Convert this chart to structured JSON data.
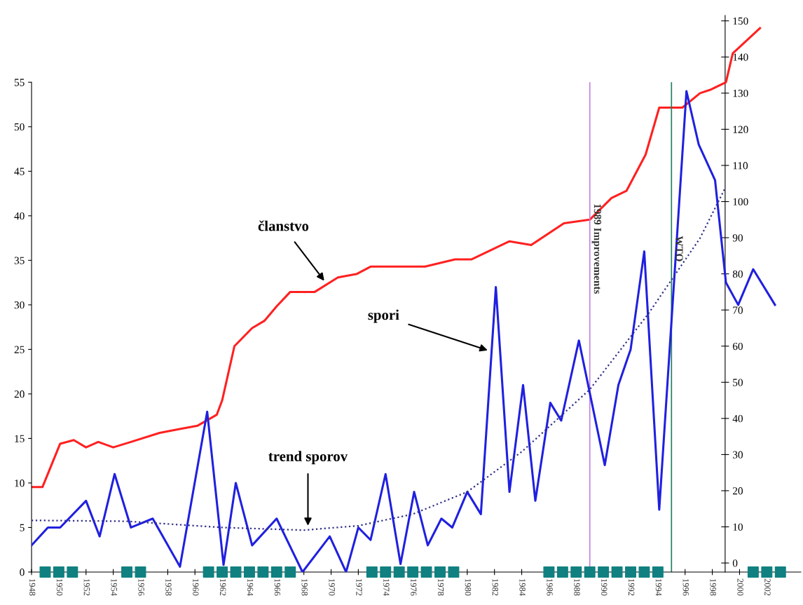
{
  "chart_data": {
    "type": "line",
    "annotations": [
      {
        "text": "članstvo",
        "x": 1969.5,
        "y": 32.7
      },
      {
        "text": "spori",
        "x": 1981.5,
        "y": 24.9
      },
      {
        "text": "trend sporov",
        "x": 1968.3,
        "y": 5.2
      }
    ],
    "series": [
      {
        "color": "#ff2020",
        "axis": "y2",
        "x": [
          1948,
          1948.8,
          1950.1,
          1951.1,
          1952,
          1952.9,
          1954,
          1955.3,
          1957.4,
          1958.8,
          1960.2,
          1961.6,
          1962,
          1962.9,
          1964.2,
          1965.1,
          1966,
          1967,
          1967.7,
          1968.8,
          1970.5,
          1971.9,
          1972.9,
          1975.2,
          1976.9,
          1979.1,
          1980.3,
          1983.1,
          1984.7,
          1987.1,
          1989,
          1990.6,
          1991.7,
          1993.1,
          1994.1,
          1995.8,
          1997.1,
          1997.9,
          1999,
          1999.5,
          2001.5
        ],
        "values": [
          21,
          21,
          33,
          34,
          32,
          33.5,
          32,
          33.5,
          36,
          37,
          38,
          41,
          45,
          60,
          65,
          67,
          71,
          75,
          75,
          75,
          79,
          80,
          82,
          82,
          82,
          84,
          84,
          89,
          88,
          94,
          95,
          101,
          103,
          113,
          126,
          126,
          130,
          131,
          133,
          141,
          148
        ]
      },
      {
        "color": "#2020e0",
        "x": [
          1948,
          1949.2,
          1950.1,
          1952,
          1953,
          1954.1,
          1955.3,
          1956.9,
          1958.9,
          1960.9,
          1962.1,
          1963,
          1964.2,
          1966,
          1967.9,
          1969.9,
          1971.1,
          1972,
          1972.9,
          1974,
          1975.1,
          1976.1,
          1977.1,
          1978.1,
          1978.9,
          1980,
          1981,
          1982.1,
          1983.1,
          1984.1,
          1985,
          1986.1,
          1986.9,
          1988.2,
          1990.1,
          1991.1,
          1992,
          1993,
          1994.1,
          1996.1,
          1997,
          1998.2,
          1999,
          1999.9,
          2001,
          2002.6
        ],
        "values": [
          3,
          5,
          5,
          8,
          4,
          11,
          5,
          6,
          0.6,
          18,
          0.8,
          10,
          3,
          6,
          0,
          4,
          0,
          5,
          3.6,
          11,
          0.9,
          9,
          3,
          6,
          5,
          9,
          6.5,
          32,
          9,
          21,
          8,
          19,
          17,
          26,
          12,
          21,
          25,
          36,
          7,
          54,
          48,
          44,
          32.5,
          30,
          34,
          30
        ]
      },
      {
        "color": "#303088",
        "line_style": "dotted",
        "x": [
          1948,
          1955,
          1962,
          1968,
          1972,
          1976,
          1980,
          1984,
          1989,
          1993.3,
          1997.1,
          1998.9
        ],
        "values": [
          5.8,
          5.7,
          5,
          4.7,
          5.2,
          6.5,
          9,
          13.5,
          20.5,
          29,
          37.5,
          43
        ]
      },
      {
        "type": "scatter",
        "color": "#108080",
        "marker": "square",
        "x": [
          1949,
          1950,
          1951,
          1955,
          1956,
          1961,
          1962,
          1963,
          1964,
          1965,
          1966,
          1967,
          1973,
          1974,
          1975,
          1976,
          1977,
          1978,
          1979,
          1986,
          1987,
          1988,
          1989,
          1990,
          1991,
          1992,
          1993,
          1994,
          2001,
          2002,
          2003
        ],
        "values": [
          0,
          0,
          0,
          0,
          0,
          0,
          0,
          0,
          0,
          0,
          0,
          0,
          0,
          0,
          0,
          0,
          0,
          0,
          0,
          0,
          0,
          0,
          0,
          0,
          0,
          0,
          0,
          0,
          0,
          0,
          0
        ]
      }
    ],
    "xlim": [
      1948,
      2004.5
    ],
    "xticks": [
      1948,
      1950,
      1952,
      1954,
      1956,
      1958,
      1960,
      1962,
      1964,
      1966,
      1968,
      1970,
      1972,
      1974,
      1976,
      1978,
      1980,
      1982,
      1984,
      1986,
      1988,
      1990,
      1992,
      1994,
      1996,
      1998,
      2000,
      2002
    ],
    "ylim": [
      0,
      62.5
    ],
    "yticks": [
      0,
      5,
      10,
      15,
      20,
      25,
      30,
      35,
      40,
      45,
      50,
      55
    ],
    "y2lim": [
      -2.5,
      151.5
    ],
    "y2ticks": [
      0,
      10,
      20,
      30,
      40,
      50,
      60,
      70,
      80,
      90,
      100,
      110,
      120,
      130,
      140,
      150
    ],
    "ref_lines": [
      {
        "axis": "x",
        "value": 1989,
        "label": "1989 Improvements",
        "color": "#c080e0"
      },
      {
        "axis": "x",
        "value": 1995,
        "label": "WTO",
        "color": "#208060"
      }
    ],
    "grid": false,
    "legend": false
  }
}
